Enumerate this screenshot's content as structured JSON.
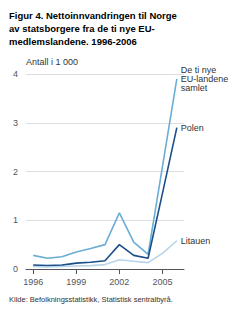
{
  "chart_data": {
    "type": "line",
    "title": "Figur 4. Nettoinnvandringen til Norge\nav statsborgere fra de ti nye EU-\nmedlemslandene. 1996-2006",
    "ylabel": "Antall i 1 000",
    "source": "Kilde: Befolkningsstatistikk, Statistisk sentralbyrå.",
    "x": [
      1996,
      1997,
      1998,
      1999,
      2000,
      2001,
      2002,
      2003,
      2004,
      2005,
      2006
    ],
    "series": [
      {
        "name": "De ti nye\nEU-landene\nsamlet",
        "color": "#6aadd5",
        "values": [
          0.28,
          0.22,
          0.25,
          0.35,
          0.42,
          0.5,
          1.15,
          0.55,
          0.3,
          2.1,
          3.9
        ]
      },
      {
        "name": "Polen",
        "color": "#1a4f8a",
        "values": [
          0.08,
          0.07,
          0.08,
          0.12,
          0.14,
          0.17,
          0.5,
          0.28,
          0.22,
          1.55,
          2.9
        ]
      },
      {
        "name": "Litauen",
        "color": "#b8d4e8",
        "values": [
          0.05,
          0.04,
          0.05,
          0.06,
          0.07,
          0.09,
          0.19,
          0.16,
          0.13,
          0.32,
          0.58
        ]
      }
    ],
    "xlim": [
      1995.5,
      2006.5
    ],
    "xticks": [
      1996,
      1999,
      2002,
      2005
    ],
    "ylim": [
      0,
      4
    ],
    "yticks": [
      0,
      1,
      2,
      3,
      4
    ],
    "grid": true
  }
}
